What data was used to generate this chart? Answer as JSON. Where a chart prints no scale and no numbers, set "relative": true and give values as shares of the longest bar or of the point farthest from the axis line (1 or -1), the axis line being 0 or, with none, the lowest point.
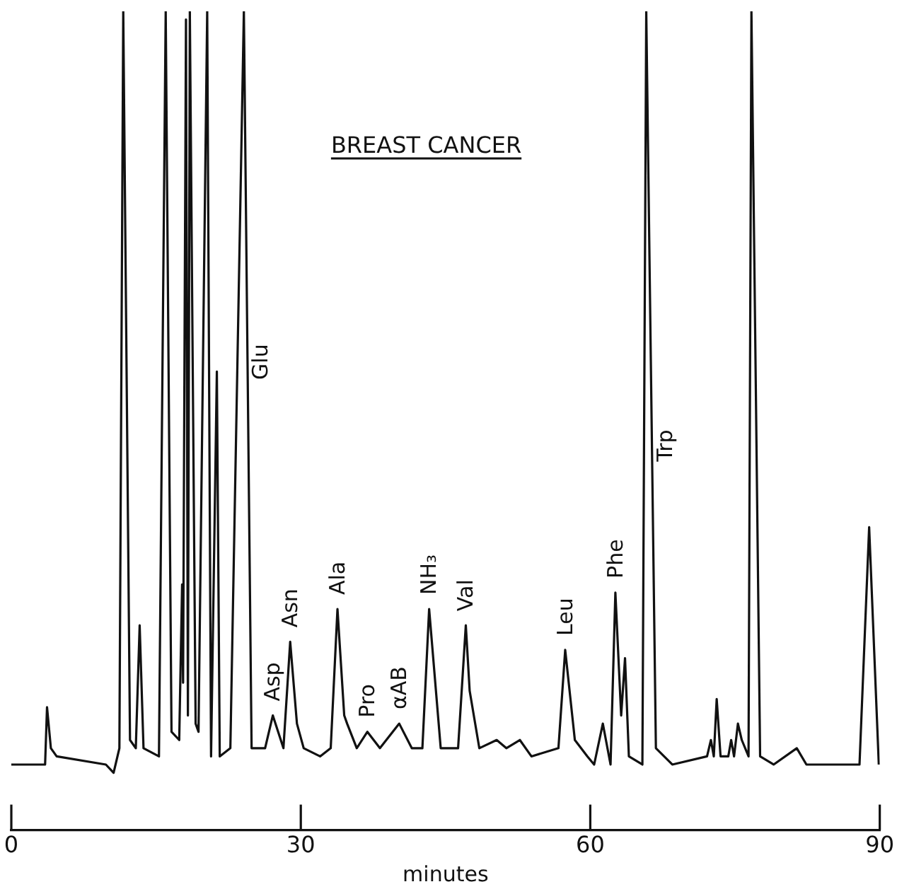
{
  "chart_data": {
    "type": "line",
    "title": "BREAST CANCER",
    "xlabel": "minutes",
    "relative": true,
    "color": "#111111",
    "marker": "none",
    "line_style": "solid",
    "legend": false,
    "grid": false,
    "tick_labels": "x",
    "xlim": [
      0,
      90
    ],
    "xticks": [
      0,
      30,
      60,
      90
    ],
    "x": [
      0,
      3.0,
      3.5,
      3.7,
      4.1,
      4.7,
      9.8,
      10.6,
      11.2,
      11.6,
      12.3,
      12.9,
      13.3,
      13.7,
      15.3,
      16.0,
      16.6,
      17.4,
      17.7,
      17.8,
      18.1,
      18.3,
      18.5,
      19.1,
      19.4,
      20.3,
      20.7,
      21.3,
      21.6,
      22.7,
      24.1,
      24.9,
      26.3,
      27.1,
      28.2,
      28.9,
      29.6,
      30.3,
      32.0,
      33.1,
      33.8,
      34.5,
      34.8,
      35.8,
      36.9,
      38.2,
      40.2,
      41.5,
      42.6,
      43.3,
      44.5,
      46.3,
      47.1,
      47.5,
      48.5,
      50.3,
      51.3,
      52.7,
      53.9,
      56.7,
      57.4,
      58.4,
      59.7,
      60.4,
      61.3,
      62.1,
      62.6,
      63.2,
      63.6,
      64.0,
      65.4,
      65.8,
      66.8,
      68.5,
      72.1,
      72.5,
      72.8,
      73.1,
      73.5,
      74.3,
      74.6,
      74.9,
      75.3,
      75.7,
      76.4,
      76.7,
      77.6,
      79.0,
      81.4,
      82.4,
      87.9,
      88.9,
      89.9
    ],
    "values": [
      0.08,
      0.08,
      0.08,
      0.15,
      0.1,
      0.09,
      0.08,
      0.07,
      0.1,
      1,
      0.11,
      0.1,
      0.25,
      0.1,
      0.09,
      1,
      0.12,
      0.11,
      0.3,
      0.18,
      0.99,
      0.14,
      1,
      0.13,
      0.12,
      1,
      0.09,
      0.56,
      0.09,
      0.1,
      1,
      0.1,
      0.1,
      0.14,
      0.1,
      0.23,
      0.13,
      0.1,
      0.09,
      0.1,
      0.27,
      0.14,
      0.13,
      0.1,
      0.12,
      0.1,
      0.13,
      0.1,
      0.1,
      0.27,
      0.1,
      0.1,
      0.25,
      0.17,
      0.1,
      0.11,
      0.1,
      0.11,
      0.09,
      0.1,
      0.22,
      0.11,
      0.09,
      0.08,
      0.13,
      0.08,
      0.29,
      0.14,
      0.21,
      0.09,
      0.08,
      1,
      0.1,
      0.08,
      0.09,
      0.11,
      0.09,
      0.16,
      0.09,
      0.09,
      0.11,
      0.09,
      0.13,
      0.11,
      0.09,
      1,
      0.09,
      0.08,
      0.1,
      0.08,
      0.08,
      0.37,
      0.08
    ],
    "annotations": [
      {
        "text": "Glu",
        "x": 24.5,
        "y": 0.55
      },
      {
        "text": "Asp",
        "x": 27.1,
        "y": 0.14
      },
      {
        "text": "Asn",
        "x": 28.9,
        "y": 0.23
      },
      {
        "text": "Ala",
        "x": 33.8,
        "y": 0.27
      },
      {
        "text": "Pro",
        "x": 36.9,
        "y": 0.12
      },
      {
        "text": "αAB",
        "x": 40.2,
        "y": 0.13
      },
      {
        "text": "NH₃",
        "x": 43.3,
        "y": 0.27
      },
      {
        "text": "Val",
        "x": 47.1,
        "y": 0.25
      },
      {
        "text": "Leu",
        "x": 57.4,
        "y": 0.22
      },
      {
        "text": "Phe",
        "x": 62.6,
        "y": 0.29
      },
      {
        "text": "Trp",
        "x": 66.4,
        "y": 0.45
      }
    ]
  }
}
